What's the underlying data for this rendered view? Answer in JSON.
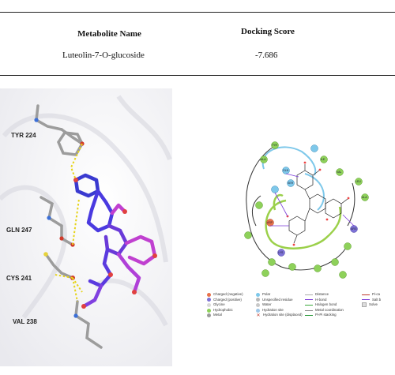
{
  "table": {
    "headers": [
      "Metabolite Name",
      "Docking Score"
    ],
    "rows": [
      {
        "name": "Luteolin-7-O-glucoside",
        "score": "-7.686"
      }
    ]
  },
  "residues": [
    "TYR 224",
    "GLN 247",
    "CYS 241",
    "VAL 238"
  ],
  "legend": {
    "col1": [
      {
        "label": "Charged (negative)",
        "color": "#e8714a"
      },
      {
        "label": "Charged (positive)",
        "color": "#7d72d6"
      },
      {
        "label": "Glycine",
        "color": "#d9d9d9"
      },
      {
        "label": "Hydrophobic",
        "color": "#8ed15a"
      },
      {
        "label": "Metal",
        "color": "#9a9a9a"
      }
    ],
    "col2": [
      {
        "label": "Polar",
        "color": "#7ec8ea"
      },
      {
        "label": "Unspecified residue",
        "color": "#b8b8b8"
      },
      {
        "label": "Water",
        "color": "#c8c8c8"
      },
      {
        "label": "Hydration site",
        "color": "#9fc7e8"
      },
      {
        "label": "Hydration site (displaced)",
        "color": "#c0392b"
      }
    ],
    "col3": [
      {
        "label": "Distance",
        "kind": "line"
      },
      {
        "label": "H-bond",
        "kind": "line"
      },
      {
        "label": "Halogen bond",
        "kind": "line"
      },
      {
        "label": "Metal coordination",
        "kind": "line"
      },
      {
        "label": "Pi-Pi stacking",
        "kind": "line"
      }
    ],
    "col4": [
      {
        "label": "Pi-ca",
        "kind": "line"
      },
      {
        "label": "Salt b",
        "kind": "line"
      },
      {
        "label": "Solve",
        "kind": "sq"
      }
    ]
  }
}
